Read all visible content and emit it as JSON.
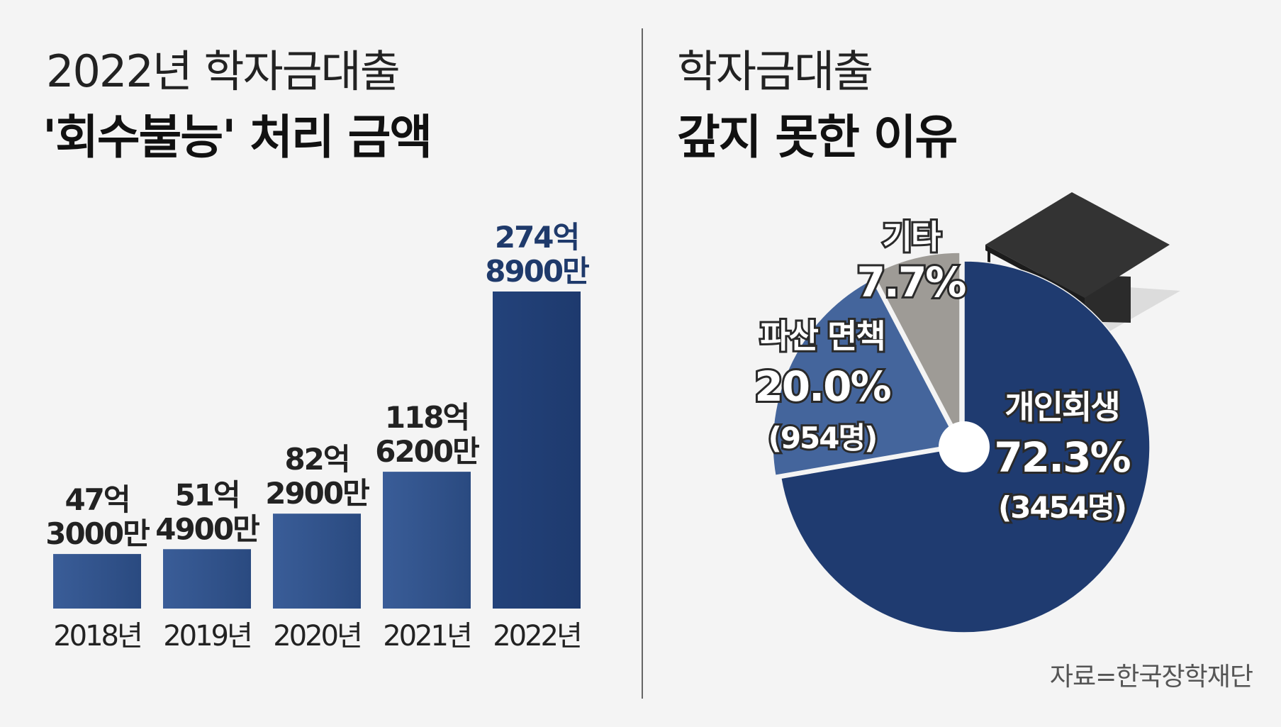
{
  "left_title": {
    "line1": "2022년 학자금대출",
    "line2": "'회수불능' 처리 금액"
  },
  "right_title": {
    "line1": "학자금대출",
    "line2": "갚지 못한 이유"
  },
  "source": "자료=한국장학재단",
  "colors": {
    "bar": "#2a4a80",
    "bar_highlight": "#1e3a6e",
    "pie_main": "#1f3b70",
    "pie_bankruptcy": "#44659c",
    "pie_other": "#9e9b96",
    "cap": "#2e2e2e"
  },
  "chart_data": [
    {
      "type": "bar",
      "title": "2022년 학자금대출 '회수불능' 처리 금액",
      "categories": [
        "2018년",
        "2019년",
        "2020년",
        "2021년",
        "2022년"
      ],
      "values": [
        47.3,
        51.49,
        82.29,
        118.62,
        274.89
      ],
      "unit": "억원",
      "data_labels": [
        [
          "47억",
          "3000만"
        ],
        [
          "51억",
          "4900만"
        ],
        [
          "82억",
          "2900만"
        ],
        [
          "118억",
          "6200만"
        ],
        [
          "274억",
          "8900만"
        ]
      ],
      "ylim": [
        0,
        274.89
      ],
      "grid": false
    },
    {
      "type": "pie",
      "title": "학자금대출 갚지 못한 이유",
      "slices": [
        {
          "name": "개인회생",
          "percent_label": "72.3%",
          "value": 72.3,
          "count_label": "(3454명)"
        },
        {
          "name": "파산 면책",
          "percent_label": "20.0%",
          "value": 20.0,
          "count_label": "(954명)"
        },
        {
          "name": "기타",
          "percent_label": "7.7%",
          "value": 7.7,
          "count_label": ""
        }
      ]
    }
  ]
}
